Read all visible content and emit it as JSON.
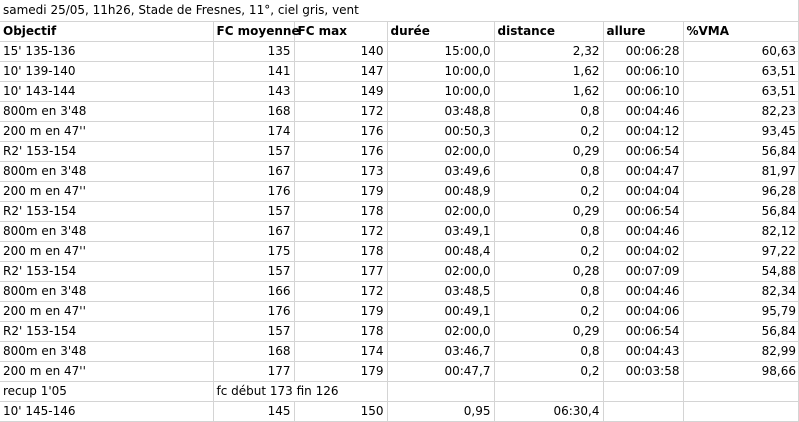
{
  "title": "samedi 25/05, 11h26, Stade de Fresnes, 11°, ciel gris, vent",
  "headers": [
    "Objectif",
    "FC moyenne",
    "FC max",
    "durée",
    "distance",
    "allure",
    "%VMA"
  ],
  "rows": [
    [
      "15' 135-136",
      "135",
      "140",
      "15:00,0",
      "2,32",
      "00:06:28",
      "60,63"
    ],
    [
      "10' 139-140",
      "141",
      "147",
      "10:00,0",
      "1,62",
      "00:06:10",
      "63,51"
    ],
    [
      "10' 143-144",
      "143",
      "149",
      "10:00,0",
      "1,62",
      "00:06:10",
      "63,51"
    ],
    [
      "800m en 3'48",
      "168",
      "172",
      "03:48,8",
      "0,8",
      "00:04:46",
      "82,23"
    ],
    [
      "200 m en 47''",
      "174",
      "176",
      "00:50,3",
      "0,2",
      "00:04:12",
      "93,45"
    ],
    [
      "R2' 153-154",
      "157",
      "176",
      "02:00,0",
      "0,29",
      "00:06:54",
      "56,84"
    ],
    [
      "800m en 3'48",
      "167",
      "173",
      "03:49,6",
      "0,8",
      "00:04:47",
      "81,97"
    ],
    [
      "200 m en 47''",
      "176",
      "179",
      "00:48,9",
      "0,2",
      "00:04:04",
      "96,28"
    ],
    [
      "R2' 153-154",
      "157",
      "178",
      "02:00,0",
      "0,29",
      "00:06:54",
      "56,84"
    ],
    [
      "800m en 3'48",
      "167",
      "172",
      "03:49,1",
      "0,8",
      "00:04:46",
      "82,12"
    ],
    [
      "200 m en 47''",
      "175",
      "178",
      "00:48,4",
      "0,2",
      "00:04:02",
      "97,22"
    ],
    [
      "R2' 153-154",
      "157",
      "177",
      "02:00,0",
      "0,28",
      "00:07:09",
      "54,88"
    ],
    [
      "800m en 3'48",
      "166",
      "172",
      "03:48,5",
      "0,8",
      "00:04:46",
      "82,34"
    ],
    [
      "200 m en 47''",
      "176",
      "179",
      "00:49,1",
      "0,2",
      "00:04:06",
      "95,79"
    ],
    [
      "R2' 153-154",
      "157",
      "178",
      "02:00,0",
      "0,29",
      "00:06:54",
      "56,84"
    ],
    [
      "800m en 3'48",
      "168",
      "174",
      "03:46,7",
      "0,8",
      "00:04:43",
      "82,99"
    ],
    [
      "200 m en 47''",
      "177",
      "179",
      "00:47,7",
      "0,2",
      "00:03:58",
      "98,66"
    ]
  ],
  "recup_row": {
    "label": "recup 1'05",
    "note": "fc début 173 fin 126"
  },
  "last_row": [
    "10' 145-146",
    "145",
    "150",
    "0,95",
    "06:30,4",
    "",
    ""
  ],
  "colors": {
    "gridline": "#d4d4d4",
    "background": "#ffffff",
    "text": "#000000"
  }
}
